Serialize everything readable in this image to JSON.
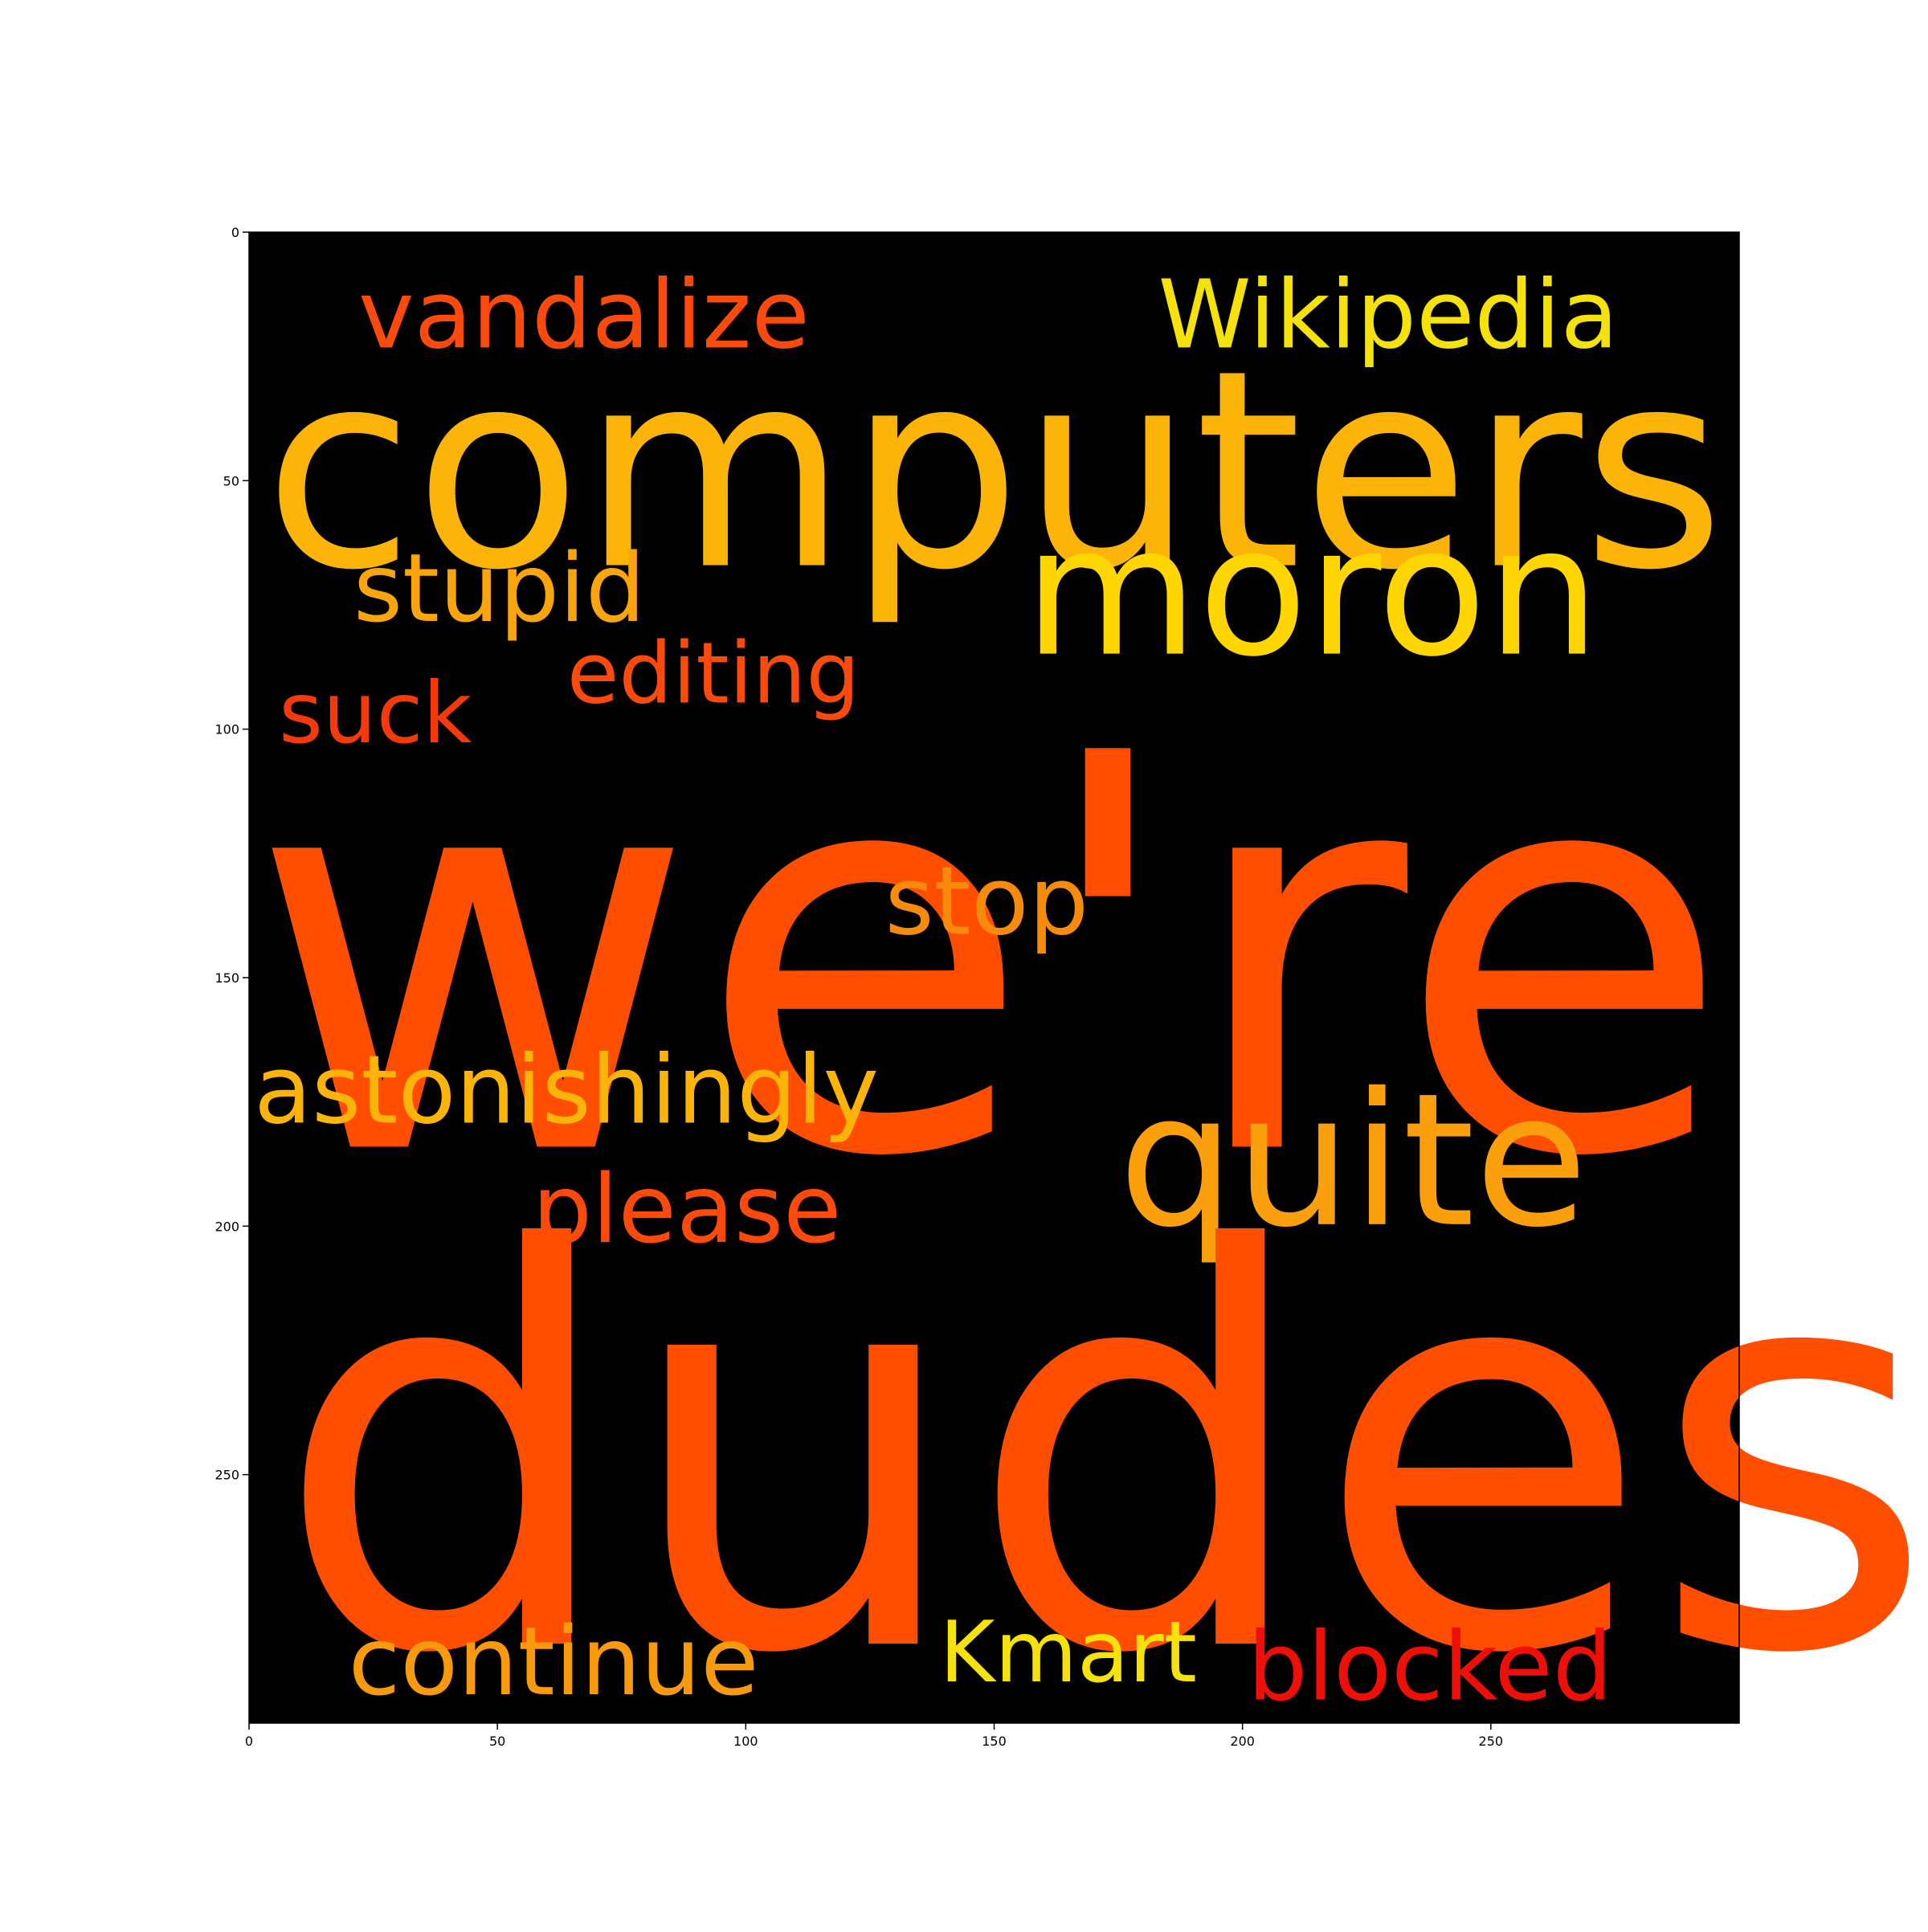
{
  "chart_data": {
    "type": "wordcloud",
    "title": "",
    "xlabel": "",
    "ylabel": "",
    "xlim": [
      0,
      300
    ],
    "ylim": [
      300,
      0
    ],
    "x_ticks": [
      0,
      50,
      100,
      150,
      200,
      250
    ],
    "y_ticks": [
      0,
      50,
      100,
      150,
      200,
      250
    ],
    "background_color": "#000000",
    "words": [
      {
        "text": "vandalize",
        "x": 22,
        "y": 8,
        "size": 19,
        "color": "#fb4a0c"
      },
      {
        "text": "Wikipedia",
        "x": 183,
        "y": 8,
        "size": 19,
        "color": "#f4e20a"
      },
      {
        "text": "computers",
        "x": 3,
        "y": 23,
        "size": 55,
        "color": "#fcb408"
      },
      {
        "text": "moron",
        "x": 156,
        "y": 56,
        "size": 36,
        "color": "#ffd600"
      },
      {
        "text": "stupid",
        "x": 21,
        "y": 63,
        "size": 19,
        "color": "#fba50c"
      },
      {
        "text": "editing",
        "x": 64,
        "y": 81,
        "size": 17,
        "color": "#fb4a0c"
      },
      {
        "text": "suck",
        "x": 6,
        "y": 89,
        "size": 17,
        "color": "#f43a0c"
      },
      {
        "text": "we're",
        "x": 0,
        "y": 96,
        "size": 110,
        "color": "#ff4e00"
      },
      {
        "text": "stop",
        "x": 128,
        "y": 126,
        "size": 19,
        "color": "#f88a0c"
      },
      {
        "text": "astonishingly",
        "x": 1,
        "y": 164,
        "size": 19,
        "color": "#fcb408"
      },
      {
        "text": "quite",
        "x": 175,
        "y": 170,
        "size": 37,
        "color": "#fba00c"
      },
      {
        "text": "please",
        "x": 57,
        "y": 188,
        "size": 19,
        "color": "#fb4a0c"
      },
      {
        "text": "dudes",
        "x": 5,
        "y": 196,
        "size": 110,
        "color": "#ff4e00"
      },
      {
        "text": "continue",
        "x": 20,
        "y": 279,
        "size": 19,
        "color": "#f89a0c"
      },
      {
        "text": "Kmart",
        "x": 139,
        "y": 278,
        "size": 17,
        "color": "#f4e20a"
      },
      {
        "text": "blocked",
        "x": 201,
        "y": 280,
        "size": 19,
        "color": "#ee1008"
      }
    ]
  }
}
